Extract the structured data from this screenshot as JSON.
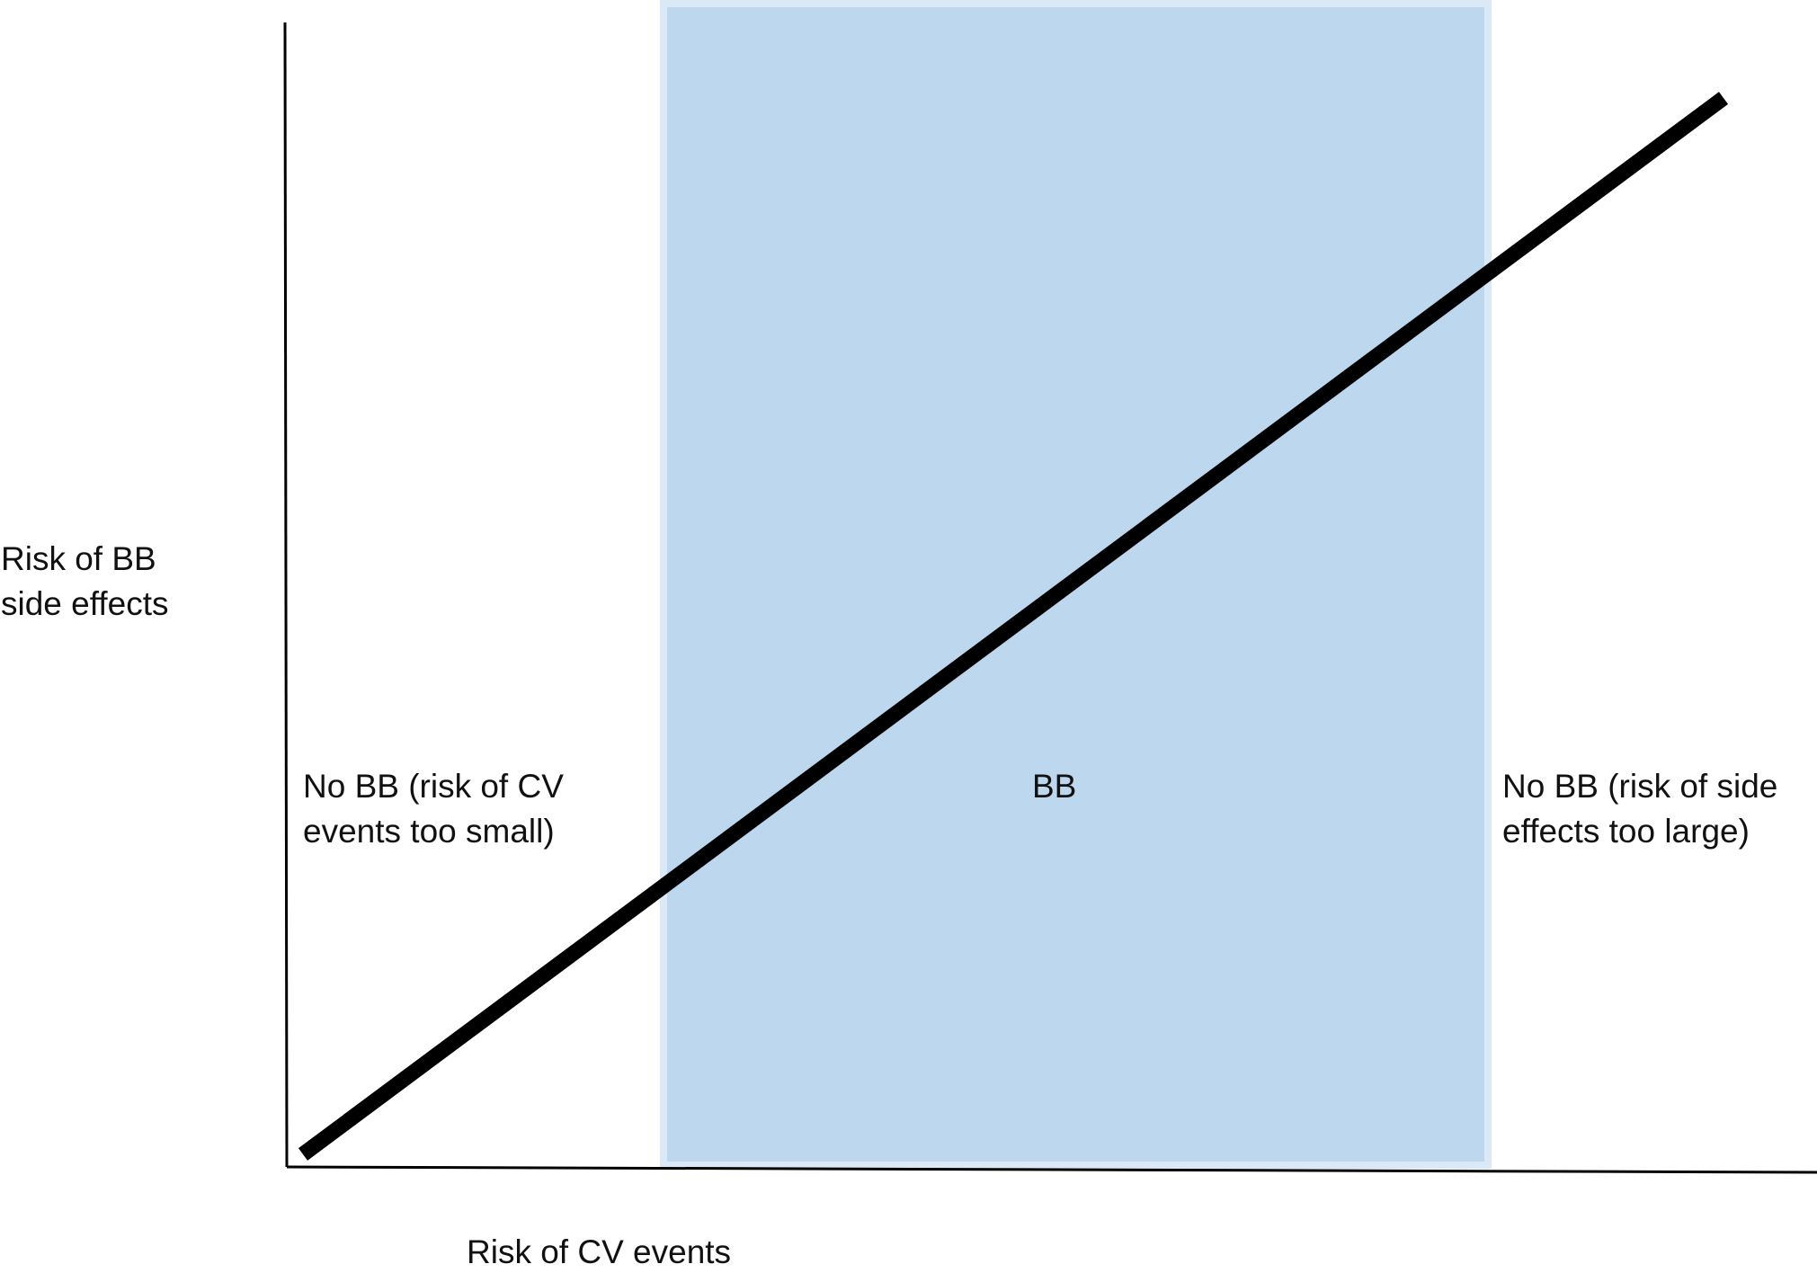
{
  "axes": {
    "y_label": "Risk of BB\nside effects",
    "x_label": "Risk of CV events"
  },
  "regions": {
    "left": "No BB (risk of CV\nevents too small)",
    "middle": "BB",
    "right": "No BB (risk of side\neffects too large)"
  },
  "colors": {
    "band_fill": "#bdd7ee",
    "band_border": "#dbe9f6",
    "line": "#000000",
    "axis": "#000000"
  }
}
